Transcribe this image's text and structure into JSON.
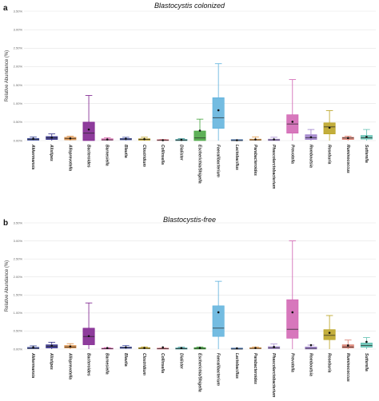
{
  "panels": [
    {
      "label": "a",
      "title": "Blastocystis colonized"
    },
    {
      "label": "b",
      "title": "Blastocystis-free"
    }
  ],
  "chart_data": [
    {
      "type": "box",
      "panel": "a",
      "title": "Blastocystis colonized",
      "ylabel": "Relative Abundance (%)",
      "ylim": [
        0,
        3.5
      ],
      "yticks": [
        "0.00%",
        "0.50%",
        "1.00%",
        "1.50%",
        "2.00%",
        "2.50%",
        "3.00%",
        "3.50%"
      ],
      "grid": true,
      "categories": [
        "Akkermansia",
        "Alistipes",
        "Alloprevotella",
        "Bacteroides",
        "Barnesiella",
        "Blautia",
        "Clostridium",
        "Collinsella",
        "Dialister",
        "Escherichia/Shigella",
        "Faecalibacterium",
        "Lactobacillus",
        "Parabacteroides",
        "Phascolarctobacterium",
        "Prevotella",
        "Romboutsia",
        "Roseburia",
        "Ruminococcus",
        "Sutterella"
      ],
      "colors": [
        "#3b4a9a",
        "#2e2a86",
        "#d98a3f",
        "#7a1a8a",
        "#d25fa8",
        "#4a57a8",
        "#b89a1a",
        "#d66a7a",
        "#2a8a8a",
        "#41a33a",
        "#5bb0dc",
        "#2e5a9a",
        "#e09a4a",
        "#a58ad0",
        "#d05fb0",
        "#9a7ac8",
        "#b8a01a",
        "#d8796a",
        "#5fbfb0"
      ],
      "boxes": [
        {
          "whislo": 0.0,
          "q1": 0.01,
          "med": 0.03,
          "q3": 0.06,
          "whishi": 0.1,
          "mean": 0.05
        },
        {
          "whislo": 0.0,
          "q1": 0.03,
          "med": 0.07,
          "q3": 0.11,
          "whishi": 0.18,
          "mean": 0.08
        },
        {
          "whislo": 0.0,
          "q1": 0.02,
          "med": 0.06,
          "q3": 0.09,
          "whishi": 0.12,
          "mean": 0.06
        },
        {
          "whislo": 0.0,
          "q1": 0.0,
          "med": 0.2,
          "q3": 0.5,
          "whishi": 1.22,
          "mean": 0.3
        },
        {
          "whislo": 0.0,
          "q1": 0.01,
          "med": 0.02,
          "q3": 0.05,
          "whishi": 0.08,
          "mean": 0.03
        },
        {
          "whislo": 0.0,
          "q1": 0.02,
          "med": 0.04,
          "q3": 0.06,
          "whishi": 0.09,
          "mean": 0.05
        },
        {
          "whislo": 0.0,
          "q1": 0.01,
          "med": 0.03,
          "q3": 0.05,
          "whishi": 0.09,
          "mean": 0.04
        },
        {
          "whislo": 0.0,
          "q1": 0.0,
          "med": 0.01,
          "q3": 0.02,
          "whishi": 0.03,
          "mean": 0.01
        },
        {
          "whislo": 0.0,
          "q1": 0.0,
          "med": 0.01,
          "q3": 0.03,
          "whishi": 0.05,
          "mean": 0.02
        },
        {
          "whislo": 0.0,
          "q1": 0.0,
          "med": 0.07,
          "q3": 0.26,
          "whishi": 0.58,
          "mean": 0.27
        },
        {
          "whislo": 0.0,
          "q1": 0.33,
          "med": 0.62,
          "q3": 1.16,
          "whishi": 2.08,
          "mean": 0.82
        },
        {
          "whislo": 0.0,
          "q1": 0.0,
          "med": 0.0,
          "q3": 0.01,
          "whishi": 0.01,
          "mean": 0.01
        },
        {
          "whislo": 0.0,
          "q1": 0.01,
          "med": 0.02,
          "q3": 0.04,
          "whishi": 0.1,
          "mean": 0.03
        },
        {
          "whislo": 0.0,
          "q1": 0.0,
          "med": 0.02,
          "q3": 0.04,
          "whishi": 0.09,
          "mean": 0.03
        },
        {
          "whislo": 0.0,
          "q1": 0.2,
          "med": 0.45,
          "q3": 0.7,
          "whishi": 1.65,
          "mean": 0.51
        },
        {
          "whislo": 0.0,
          "q1": 0.03,
          "med": 0.08,
          "q3": 0.16,
          "whishi": 0.3,
          "mean": 0.09
        },
        {
          "whislo": 0.0,
          "q1": 0.18,
          "med": 0.37,
          "q3": 0.48,
          "whishi": 0.81,
          "mean": 0.35
        },
        {
          "whislo": 0.0,
          "q1": 0.03,
          "med": 0.07,
          "q3": 0.09,
          "whishi": 0.12,
          "mean": 0.07
        },
        {
          "whislo": 0.0,
          "q1": 0.04,
          "med": 0.08,
          "q3": 0.14,
          "whishi": 0.3,
          "mean": 0.1
        }
      ]
    },
    {
      "type": "box",
      "panel": "b",
      "title": "Blastocystis-free",
      "ylabel": "Relative Abundance (%)",
      "ylim": [
        0,
        3.5
      ],
      "yticks": [
        "0.00%",
        "0.50%",
        "1.00%",
        "1.50%",
        "2.00%",
        "2.50%",
        "3.00%",
        "3.50%"
      ],
      "grid": true,
      "categories": [
        "Akkermansia",
        "Alistipes",
        "Alloprevotella",
        "Bacteroides",
        "Barnesiella",
        "Blautia",
        "Clostridium",
        "Collinsella",
        "Dialister",
        "Escherichia/Shigella",
        "Faecalibacterium",
        "Lactobacillus",
        "Parabacteroides",
        "Phascolarctobacterium",
        "Prevotella",
        "Romboutsia",
        "Roseburia",
        "Ruminococcus",
        "Sutterella"
      ],
      "colors": [
        "#3b4a9a",
        "#2e2a86",
        "#d98a3f",
        "#7a1a8a",
        "#d25fa8",
        "#4a57a8",
        "#b89a1a",
        "#d66a7a",
        "#2a8a8a",
        "#41a33a",
        "#5bb0dc",
        "#2e5a9a",
        "#e09a4a",
        "#a58ad0",
        "#d05fb0",
        "#9a7ac8",
        "#b8a01a",
        "#d8796a",
        "#5fbfb0"
      ],
      "boxes": [
        {
          "whislo": 0.0,
          "q1": 0.01,
          "med": 0.02,
          "q3": 0.05,
          "whishi": 0.09,
          "mean": 0.05
        },
        {
          "whislo": 0.0,
          "q1": 0.03,
          "med": 0.08,
          "q3": 0.12,
          "whishi": 0.19,
          "mean": 0.09
        },
        {
          "whislo": 0.0,
          "q1": 0.03,
          "med": 0.06,
          "q3": 0.1,
          "whishi": 0.15,
          "mean": 0.07
        },
        {
          "whislo": 0.0,
          "q1": 0.12,
          "med": 0.35,
          "q3": 0.58,
          "whishi": 1.28,
          "mean": 0.36
        },
        {
          "whislo": 0.0,
          "q1": 0.0,
          "med": 0.01,
          "q3": 0.02,
          "whishi": 0.04,
          "mean": 0.03
        },
        {
          "whislo": 0.0,
          "q1": 0.02,
          "med": 0.04,
          "q3": 0.06,
          "whishi": 0.1,
          "mean": 0.05
        },
        {
          "whislo": 0.0,
          "q1": 0.01,
          "med": 0.02,
          "q3": 0.04,
          "whishi": 0.06,
          "mean": 0.03
        },
        {
          "whislo": 0.0,
          "q1": 0.0,
          "med": 0.01,
          "q3": 0.02,
          "whishi": 0.03,
          "mean": 0.05
        },
        {
          "whislo": 0.0,
          "q1": 0.0,
          "med": 0.01,
          "q3": 0.03,
          "whishi": 0.05,
          "mean": 0.03
        },
        {
          "whislo": 0.0,
          "q1": 0.0,
          "med": 0.02,
          "q3": 0.04,
          "whishi": 0.06,
          "mean": 0.03
        },
        {
          "whislo": 0.0,
          "q1": 0.35,
          "med": 0.58,
          "q3": 1.2,
          "whishi": 1.88,
          "mean": 1.02
        },
        {
          "whislo": 0.0,
          "q1": 0.0,
          "med": 0.0,
          "q3": 0.01,
          "whishi": 0.02,
          "mean": 0.02
        },
        {
          "whislo": 0.0,
          "q1": 0.01,
          "med": 0.02,
          "q3": 0.04,
          "whishi": 0.06,
          "mean": 0.03
        },
        {
          "whislo": 0.0,
          "q1": 0.01,
          "med": 0.03,
          "q3": 0.07,
          "whishi": 0.14,
          "mean": 0.06
        },
        {
          "whislo": 0.0,
          "q1": 0.3,
          "med": 0.55,
          "q3": 1.37,
          "whishi": 3.0,
          "mean": 1.02
        },
        {
          "whislo": 0.0,
          "q1": 0.0,
          "med": 0.02,
          "q3": 0.06,
          "whishi": 0.11,
          "mean": 0.11
        },
        {
          "whislo": 0.0,
          "q1": 0.26,
          "med": 0.38,
          "q3": 0.54,
          "whishi": 0.93,
          "mean": 0.45
        },
        {
          "whislo": 0.0,
          "q1": 0.03,
          "med": 0.06,
          "q3": 0.12,
          "whishi": 0.25,
          "mean": 0.1
        },
        {
          "whislo": 0.0,
          "q1": 0.05,
          "med": 0.1,
          "q3": 0.17,
          "whishi": 0.32,
          "mean": 0.2
        }
      ]
    }
  ]
}
